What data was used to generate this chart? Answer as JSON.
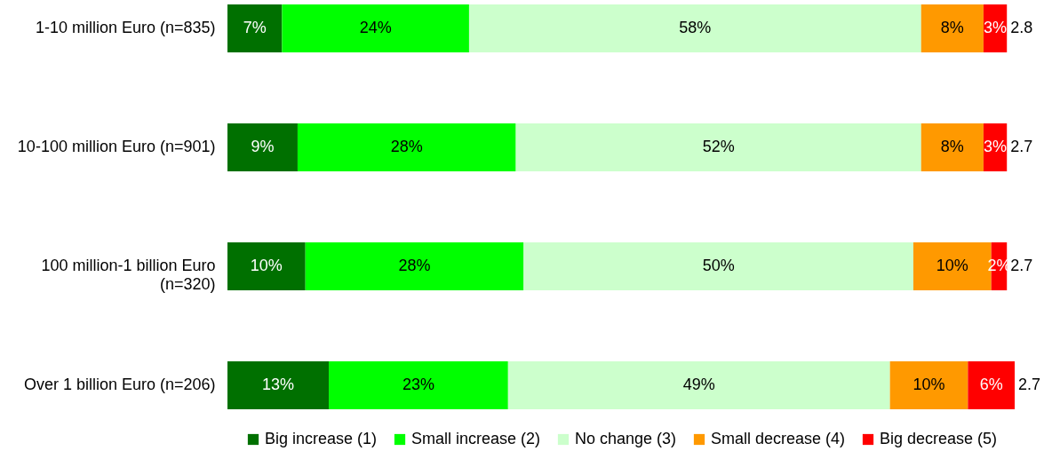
{
  "chart_data": {
    "type": "bar",
    "orientation": "horizontal",
    "stacked": true,
    "categories": [
      "1-10 million Euro (n=835)",
      "10-100 million Euro (n=901)",
      "100 million-1 billion Euro (n=320)",
      "Over 1 billion Euro (n=206)"
    ],
    "series": [
      {
        "name": "Big increase (1)",
        "color": "#007000",
        "values": [
          7,
          9,
          10,
          13
        ],
        "value_labels": [
          "7%",
          "9%",
          "10%",
          "13%"
        ]
      },
      {
        "name": "Small increase (2)",
        "color": "#00ff00",
        "values": [
          24,
          28,
          28,
          23
        ],
        "value_labels": [
          "24%",
          "28%",
          "28%",
          "23%"
        ]
      },
      {
        "name": "No change (3)",
        "color": "#ccffcc",
        "values": [
          58,
          52,
          50,
          49
        ],
        "value_labels": [
          "58%",
          "52%",
          "50%",
          "49%"
        ]
      },
      {
        "name": "Small decrease (4)",
        "color": "#ff9900",
        "values": [
          8,
          8,
          10,
          10
        ],
        "value_labels": [
          "8%",
          "8%",
          "10%",
          "10%"
        ]
      },
      {
        "name": "Big decrease (5)",
        "color": "#ff0000",
        "values": [
          3,
          3,
          2,
          6
        ],
        "value_labels": [
          "3%",
          "3%",
          "2%",
          "6%"
        ]
      }
    ],
    "annotations": [
      "2.8",
      "2.7",
      "2.7",
      "2.7"
    ],
    "xlim": [
      0,
      101
    ],
    "tick_labels": "y",
    "legend": "bottom"
  }
}
